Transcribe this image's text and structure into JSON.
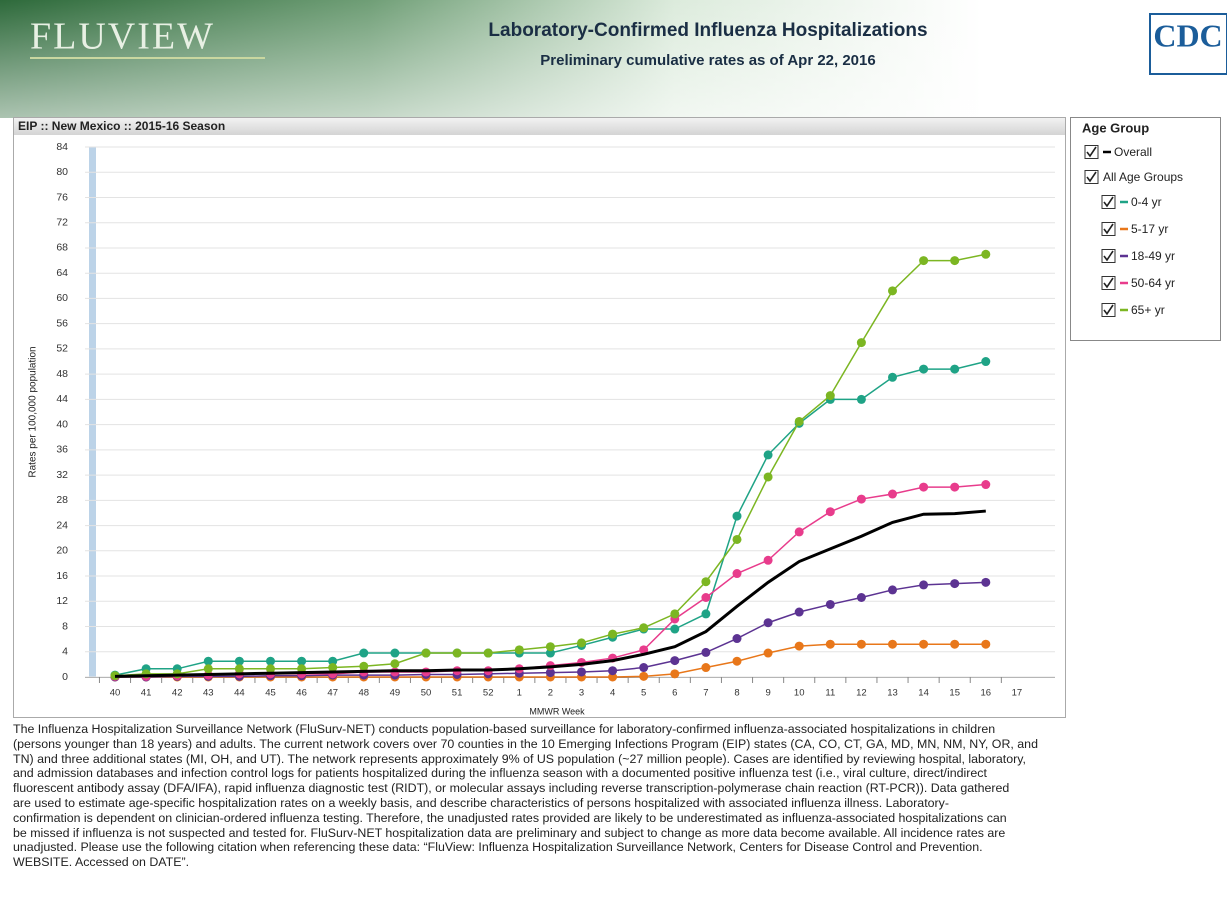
{
  "header": {
    "logo": "FLUVIEW",
    "title": "Laboratory-Confirmed Influenza Hospitalizations",
    "subtitle": "Preliminary cumulative rates as of Apr 22, 2016",
    "agency_logo": "CDC"
  },
  "chart_data": {
    "type": "line",
    "title": "EIP :: New Mexico :: 2015-16 Season",
    "x_label": "MMWR Week",
    "y_label": "Rates per 100,000 population",
    "categories": [
      "40",
      "41",
      "42",
      "43",
      "44",
      "45",
      "46",
      "47",
      "48",
      "49",
      "50",
      "51",
      "52",
      "1",
      "2",
      "3",
      "4",
      "5",
      "6",
      "7",
      "8",
      "9",
      "10",
      "11",
      "12",
      "13",
      "14",
      "15",
      "16",
      "17"
    ],
    "ylim": [
      0,
      84
    ],
    "yticks": [
      0,
      4,
      8,
      12,
      16,
      20,
      24,
      28,
      32,
      36,
      40,
      44,
      48,
      52,
      56,
      60,
      64,
      68,
      72,
      76,
      80,
      84
    ],
    "grid": true,
    "legend_title": "Age Group",
    "legend_group_label": "All Age Groups",
    "series": [
      {
        "name": "Overall",
        "color": "#000000",
        "markers": false,
        "values": [
          0.1,
          0.2,
          0.3,
          0.4,
          0.5,
          0.6,
          0.7,
          0.8,
          0.9,
          1,
          1,
          1.1,
          1.1,
          1.3,
          1.6,
          2,
          2.6,
          3.6,
          4.8,
          7.2,
          11.2,
          15,
          18.3,
          20.3,
          22.3,
          24.5,
          25.8,
          25.9,
          26.3,
          null
        ]
      },
      {
        "name": "0-4 yr",
        "color": "#1fa386",
        "markers": true,
        "values": [
          0.3,
          1.3,
          1.3,
          2.5,
          2.5,
          2.5,
          2.5,
          2.5,
          3.8,
          3.8,
          3.8,
          3.8,
          3.8,
          3.8,
          3.8,
          5,
          6.3,
          7.6,
          7.6,
          10,
          25.5,
          35.2,
          40.2,
          44,
          44,
          47.5,
          48.8,
          48.8,
          50,
          null
        ]
      },
      {
        "name": "5-17 yr",
        "color": "#e8771a",
        "markers": true,
        "values": [
          0,
          0,
          0,
          0,
          0,
          0,
          0,
          0,
          0,
          0,
          0,
          0,
          0,
          0,
          0,
          0,
          0,
          0.1,
          0.5,
          1.5,
          2.5,
          3.8,
          4.9,
          5.2,
          5.2,
          5.2,
          5.2,
          5.2,
          5.2,
          null
        ]
      },
      {
        "name": "18-49 yr",
        "color": "#5c3392",
        "markers": true,
        "values": [
          0,
          0,
          0.1,
          0.1,
          0.1,
          0.2,
          0.2,
          0.3,
          0.3,
          0.3,
          0.4,
          0.4,
          0.5,
          0.6,
          0.7,
          0.8,
          1,
          1.5,
          2.6,
          3.9,
          6.1,
          8.6,
          10.3,
          11.5,
          12.6,
          13.8,
          14.6,
          14.8,
          15,
          null
        ]
      },
      {
        "name": "50-64 yr",
        "color": "#e83c8c",
        "markers": true,
        "values": [
          0.1,
          0.1,
          0.2,
          0.3,
          0.5,
          0.5,
          0.5,
          0.5,
          0.8,
          0.8,
          0.8,
          1,
          1,
          1.3,
          1.8,
          2.3,
          3,
          4.3,
          9.2,
          12.6,
          16.4,
          18.5,
          23,
          26.2,
          28.2,
          29,
          30.1,
          30.1,
          30.5,
          null
        ]
      },
      {
        "name": "65+ yr",
        "color": "#7cb622",
        "markers": true,
        "values": [
          0.2,
          0.5,
          0.5,
          1.3,
          1.3,
          1.3,
          1.3,
          1.5,
          1.7,
          2.1,
          3.8,
          3.8,
          3.8,
          4.3,
          4.8,
          5.4,
          6.8,
          7.8,
          10,
          15.1,
          21.8,
          31.7,
          40.5,
          44.6,
          53,
          61.2,
          66,
          66,
          67,
          null
        ]
      }
    ]
  },
  "description": {
    "lines": [
      "The Influenza Hospitalization Surveillance Network (FluSurv-NET) conducts population-based surveillance for laboratory-confirmed influenza-associated hospitalizations in children",
      "(persons younger than 18 years) and adults. The current network covers over 70 counties in the 10 Emerging Infections Program (EIP) states (CA, CO, CT, GA, MD, MN, NM, NY, OR, and",
      "TN) and three additional states (MI, OH, and UT). The network represents approximately 9% of US population (~27 million people). Cases are identified by reviewing hospital, laboratory,",
      "and admission databases and infection control logs for patients hospitalized during the influenza season with a documented positive influenza test (i.e., viral culture, direct/indirect",
      "fluorescent antibody assay (DFA/IFA), rapid influenza diagnostic test (RIDT), or molecular assays including reverse transcription-polymerase chain reaction (RT-PCR)). Data gathered",
      "are used to estimate age-specific hospitalization rates on a weekly basis, and describe characteristics of persons hospitalized with associated influenza illness. Laboratory-",
      "confirmation is dependent on clinician-ordered influenza testing. Therefore, the unadjusted rates provided are likely to be underestimated as influenza-associated hospitalizations can",
      "be missed if influenza is not suspected and tested for. FluSurv-NET hospitalization data are preliminary and subject to change as more data become available. All incidence rates are",
      "unadjusted. Please use the following citation when referencing these data: “FluView: Influenza Hospitalization Surveillance Network, Centers for Disease Control and Prevention.",
      "WEBSITE. Accessed on DATE”."
    ]
  }
}
